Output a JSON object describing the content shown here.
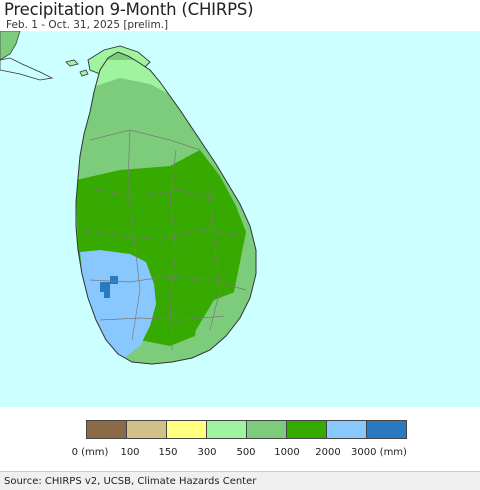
{
  "title": "Precipitation 9-Month (CHIRPS)",
  "subtitle": "Feb. 1 - Oct. 31, 2025 [prelim.]",
  "source": "Source: CHIRPS v2, UCSB, Climate Hazards Center",
  "legend": {
    "colors": [
      "#8b6b47",
      "#d2c08a",
      "#ffff80",
      "#a0f4a0",
      "#7ccc7c",
      "#36aa00",
      "#88c8ff",
      "#2a7ac0"
    ],
    "labels": [
      "0 (mm)",
      "100",
      "150",
      "300",
      "500",
      "1000",
      "2000",
      "3000 (mm)"
    ]
  },
  "map": {
    "ocean_color": "#ccffff",
    "land_outside_color": "#7ccc7c",
    "boundary_color": "#888888"
  }
}
